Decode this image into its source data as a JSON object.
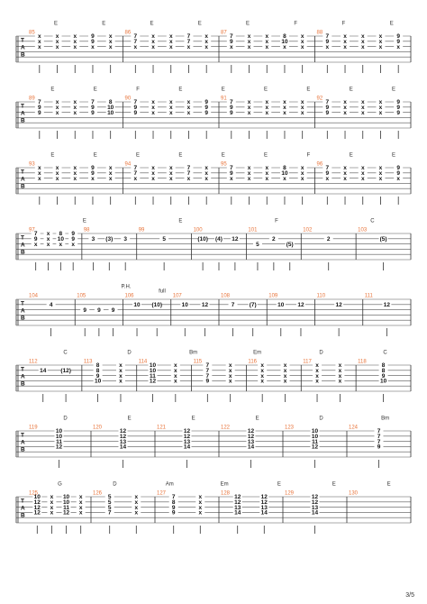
{
  "systems": [
    {
      "chords": [
        "E",
        "E",
        "E",
        "E",
        "E",
        "F",
        "F",
        "E"
      ],
      "measures": [
        {
          "number": "85",
          "columns": [
            [
              "x",
              "x",
              "x"
            ],
            [
              "x",
              "x",
              "x"
            ],
            [
              "x",
              "x",
              "x"
            ],
            [
              "9",
              "9",
              "x"
            ],
            [
              "x",
              "x",
              "x"
            ]
          ]
        },
        {
          "number": "86",
          "columns": [
            [
              "7",
              "7",
              "x"
            ],
            [
              "x",
              "x",
              "x"
            ],
            [
              "x",
              "x",
              "x"
            ],
            [
              "7",
              "7",
              "x"
            ],
            [
              "x",
              "x",
              "x"
            ]
          ]
        },
        {
          "number": "87",
          "columns": [
            [
              "7",
              "9",
              "x"
            ],
            [
              "x",
              "x",
              "x"
            ],
            [
              "x",
              "x",
              "x"
            ],
            [
              "8",
              "10",
              "x"
            ],
            [
              "x",
              "x",
              "x"
            ]
          ]
        },
        {
          "number": "88",
          "columns": [
            [
              "7",
              "9",
              "x"
            ],
            [
              "x",
              "x",
              "x"
            ],
            [
              "x",
              "x",
              "x"
            ],
            [
              "x",
              "x",
              "x"
            ],
            [
              "9",
              "9",
              "x"
            ]
          ]
        }
      ]
    },
    {
      "chords": [
        "E",
        "E",
        "F",
        "E",
        "E",
        "E",
        "E",
        "E",
        "E"
      ],
      "measures": [
        {
          "number": "89",
          "columns": [
            [
              "7",
              "9",
              "9"
            ],
            [
              "x",
              "x",
              "x"
            ],
            [
              "x",
              "x",
              "x"
            ],
            [
              "7",
              "9",
              "9"
            ],
            [
              "8",
              "10",
              "10"
            ]
          ]
        },
        {
          "number": "90",
          "columns": [
            [
              "7",
              "9",
              "9"
            ],
            [
              "x",
              "x",
              "x"
            ],
            [
              "x",
              "x",
              "x"
            ],
            [
              "x",
              "x",
              "x"
            ],
            [
              "9",
              "9",
              "9"
            ]
          ]
        },
        {
          "number": "91",
          "columns": [
            [
              "7",
              "9",
              "9"
            ],
            [
              "x",
              "x",
              "x"
            ],
            [
              "x",
              "x",
              "x"
            ],
            [
              "x",
              "x",
              "x"
            ],
            [
              "x",
              "x",
              "x"
            ]
          ]
        },
        {
          "number": "92",
          "columns": [
            [
              "7",
              "9",
              "9"
            ],
            [
              "x",
              "x",
              "x"
            ],
            [
              "x",
              "x",
              "x"
            ],
            [
              "x",
              "x",
              "x"
            ],
            [
              "9",
              "9",
              "9"
            ]
          ]
        }
      ]
    },
    {
      "chords": [
        "E",
        "E",
        "E",
        "E",
        "E",
        "E",
        "F",
        "E",
        "E"
      ],
      "measures": [
        {
          "number": "93",
          "columns": [
            [
              "x",
              "x",
              "x"
            ],
            [
              "x",
              "x",
              "x"
            ],
            [
              "x",
              "x",
              "x"
            ],
            [
              "9",
              "9",
              "x"
            ],
            [
              "x",
              "x",
              "x"
            ]
          ]
        },
        {
          "number": "94",
          "columns": [
            [
              "7",
              "7",
              "x"
            ],
            [
              "x",
              "x",
              "x"
            ],
            [
              "x",
              "x",
              "x"
            ],
            [
              "7",
              "7",
              "x"
            ],
            [
              "x",
              "x",
              "x"
            ]
          ]
        },
        {
          "number": "95",
          "columns": [
            [
              "7",
              "9",
              "x"
            ],
            [
              "x",
              "x",
              "x"
            ],
            [
              "x",
              "x",
              "x"
            ],
            [
              "8",
              "10",
              "x"
            ],
            [
              "x",
              "x",
              "x"
            ]
          ]
        },
        {
          "number": "96",
          "columns": [
            [
              "7",
              "9",
              "x"
            ],
            [
              "x",
              "x",
              "x"
            ],
            [
              "x",
              "x",
              "x"
            ],
            [
              "x",
              "x",
              "x"
            ],
            [
              "9",
              "9",
              "x"
            ]
          ]
        }
      ]
    },
    {
      "chords": [
        "E",
        "E",
        "F",
        "C"
      ],
      "measures": [
        {
          "number": "97",
          "columns": [
            [
              "7",
              "9",
              "x"
            ],
            [
              "x",
              "x",
              "x"
            ],
            [
              "8",
              "10",
              "x"
            ],
            [
              "9",
              "9",
              "x"
            ]
          ]
        },
        {
          "number": "98",
          "columns": [
            [
              null,
              "3"
            ],
            [
              null,
              "(3)"
            ],
            [
              null,
              "3"
            ]
          ]
        },
        {
          "number": "99",
          "columns": [
            [
              null,
              "5"
            ]
          ]
        },
        {
          "number": "100",
          "columns": [
            [
              null,
              "(10)"
            ],
            [
              null,
              "(4)"
            ],
            [
              null,
              "12"
            ]
          ]
        },
        {
          "number": "101",
          "columns": [
            [
              null,
              null,
              "5"
            ],
            [
              null,
              "2"
            ],
            [
              null,
              null,
              "(5)"
            ]
          ]
        },
        {
          "number": "102",
          "columns": [
            [
              null,
              "2"
            ]
          ]
        },
        {
          "number": "103",
          "columns": [
            [
              null,
              "(5)"
            ]
          ]
        }
      ]
    },
    {
      "annotations": [
        "P.H.",
        "full"
      ],
      "measures": [
        {
          "number": "104",
          "columns": [
            [
              null,
              "4"
            ]
          ]
        },
        {
          "number": "105",
          "columns": [
            [
              null,
              null,
              "9"
            ],
            [
              null,
              null,
              "9"
            ],
            [
              null,
              null,
              "9"
            ]
          ]
        },
        {
          "number": "106",
          "columns": [
            [
              null,
              "10"
            ],
            [
              null,
              "(10)"
            ]
          ]
        },
        {
          "number": "107",
          "columns": [
            [
              null,
              "10"
            ],
            [
              null,
              "12"
            ]
          ]
        },
        {
          "number": "108",
          "columns": [
            [
              null,
              "7"
            ],
            [
              null,
              "(7)"
            ]
          ]
        },
        {
          "number": "109",
          "columns": [
            [
              null,
              "10"
            ],
            [
              null,
              "12"
            ]
          ]
        },
        {
          "number": "110",
          "columns": [
            [
              null,
              "12"
            ]
          ]
        },
        {
          "number": "111",
          "columns": [
            [
              null,
              "12"
            ]
          ]
        }
      ]
    },
    {
      "chords": [
        "C",
        "D",
        "Bm",
        "Em",
        "D",
        "C"
      ],
      "measures": [
        {
          "number": "112",
          "columns": [
            [
              null,
              "14"
            ],
            [
              null,
              "(12)"
            ]
          ]
        },
        {
          "number": "113",
          "columns": [
            [
              "8",
              "8",
              "9",
              "10"
            ],
            [
              "x",
              "x",
              "x",
              "x"
            ]
          ]
        },
        {
          "number": "114",
          "columns": [
            [
              "10",
              "10",
              "11",
              "12"
            ],
            [
              "x",
              "x",
              "x",
              "x"
            ]
          ]
        },
        {
          "number": "115",
          "columns": [
            [
              "7",
              "7",
              "7",
              "9"
            ],
            [
              "x",
              "x",
              "x",
              "x"
            ]
          ]
        },
        {
          "number": "116",
          "columns": [
            [
              "x",
              "x",
              "x",
              "x"
            ],
            [
              "x",
              "x",
              "x",
              "x"
            ]
          ]
        },
        {
          "number": "117",
          "columns": [
            [
              "x",
              "x",
              "x",
              "x"
            ],
            [
              "x",
              "x",
              "x",
              "x"
            ]
          ]
        },
        {
          "number": "118",
          "columns": [
            [
              "8",
              "8",
              "9",
              "10"
            ]
          ]
        }
      ]
    },
    {
      "chords": [
        "D",
        "E",
        "E",
        "E",
        "D",
        "Bm"
      ],
      "measures": [
        {
          "number": "119",
          "columns": [
            [
              "10",
              "10",
              "11",
              "12"
            ]
          ]
        },
        {
          "number": "120",
          "columns": [
            [
              "12",
              "12",
              "13",
              "14"
            ]
          ]
        },
        {
          "number": "121",
          "columns": [
            [
              "12",
              "12",
              "13",
              "14"
            ]
          ]
        },
        {
          "number": "122",
          "columns": [
            [
              "12",
              "12",
              "13",
              "14"
            ]
          ]
        },
        {
          "number": "123",
          "columns": [
            [
              "10",
              "10",
              "11",
              "12"
            ]
          ]
        },
        {
          "number": "124",
          "columns": [
            [
              "7",
              "7",
              "7",
              "9"
            ]
          ]
        }
      ]
    },
    {
      "chords": [
        "G",
        "D",
        "Am",
        "Em",
        "E",
        "E",
        "E"
      ],
      "measures": [
        {
          "number": "125",
          "columns": [
            [
              "10",
              "12",
              "12",
              "12"
            ],
            [
              "x",
              "x",
              "x",
              "x"
            ],
            [
              "10",
              "10",
              "11",
              "12"
            ],
            [
              "x",
              "x",
              "x",
              "x"
            ]
          ]
        },
        {
          "number": "126",
          "columns": [
            [
              "5",
              "5",
              "5",
              "7"
            ],
            [
              "x",
              "x",
              "x",
              "x"
            ]
          ]
        },
        {
          "number": "127",
          "columns": [
            [
              "7",
              "8",
              "9",
              "9"
            ],
            [
              "x",
              "x",
              "x",
              "x"
            ]
          ]
        },
        {
          "number": "128",
          "columns": [
            [
              "12",
              "12",
              "13",
              "14"
            ],
            [
              "12",
              "12",
              "13",
              "14"
            ]
          ]
        },
        {
          "number": "129",
          "columns": [
            [
              "12",
              "12",
              "13",
              "14"
            ]
          ]
        },
        {
          "number": "130",
          "columns": []
        }
      ]
    }
  ],
  "tab_label": [
    "T",
    "A",
    "B"
  ],
  "page_number": "3/5"
}
